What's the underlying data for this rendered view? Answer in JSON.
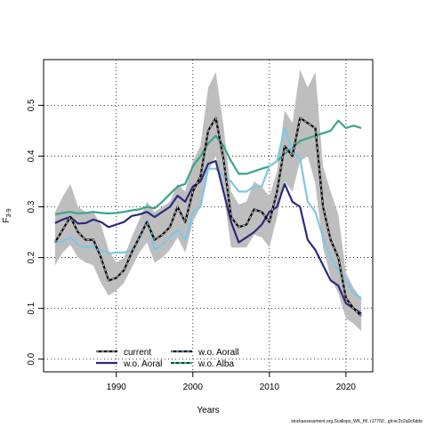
{
  "chart_data": {
    "type": "line",
    "xlabel": "Years",
    "ylabel": "F",
    "ylabel_sub": "3-9",
    "xlim": [
      1980.5,
      2023.5
    ],
    "ylim": [
      -0.025,
      0.59
    ],
    "x_ticks": [
      1990,
      2000,
      2010,
      2020
    ],
    "y_ticks": [
      0.0,
      0.1,
      0.2,
      0.3,
      0.4,
      0.5
    ],
    "y_tick_labels": [
      "0.0",
      "0.1",
      "0.2",
      "0.3",
      "0.4",
      "0.5"
    ],
    "grid": true,
    "legend_position": "bottom-left",
    "x": [
      1982,
      1983,
      1984,
      1985,
      1986,
      1987,
      1988,
      1989,
      1990,
      1991,
      1992,
      1993,
      1994,
      1995,
      1996,
      1997,
      1998,
      1999,
      2000,
      2001,
      2002,
      2003,
      2004,
      2005,
      2006,
      2007,
      2008,
      2009,
      2010,
      2011,
      2012,
      2013,
      2014,
      2015,
      2016,
      2017,
      2018,
      2019,
      2020,
      2021,
      2022
    ],
    "confidence_band": {
      "series": "current",
      "color": "#bebebe",
      "lower": [
        0.185,
        0.21,
        0.225,
        0.2,
        0.19,
        0.185,
        0.15,
        0.125,
        0.135,
        0.15,
        0.18,
        0.21,
        0.23,
        0.19,
        0.2,
        0.215,
        0.24,
        0.21,
        0.27,
        0.3,
        0.37,
        0.4,
        0.33,
        0.22,
        0.22,
        0.22,
        0.245,
        0.24,
        0.22,
        0.28,
        0.35,
        0.33,
        0.39,
        0.4,
        0.345,
        0.22,
        0.16,
        0.13,
        0.08,
        0.07,
        0.055
      ],
      "upper": [
        0.29,
        0.32,
        0.345,
        0.3,
        0.29,
        0.29,
        0.265,
        0.215,
        0.19,
        0.2,
        0.24,
        0.275,
        0.31,
        0.29,
        0.3,
        0.31,
        0.345,
        0.33,
        0.39,
        0.42,
        0.535,
        0.565,
        0.46,
        0.33,
        0.305,
        0.31,
        0.35,
        0.34,
        0.32,
        0.37,
        0.49,
        0.465,
        0.57,
        0.535,
        0.565,
        0.38,
        0.33,
        0.285,
        0.17,
        0.14,
        0.12
      ]
    },
    "series": [
      {
        "name": "current",
        "color": "#000000",
        "dash": "solid",
        "overlay_dash": "#bdbdbd",
        "values": [
          0.23,
          0.255,
          0.28,
          0.25,
          0.235,
          0.235,
          0.2,
          0.155,
          0.16,
          0.175,
          0.21,
          0.24,
          0.27,
          0.235,
          0.245,
          0.26,
          0.3,
          0.27,
          0.33,
          0.36,
          0.45,
          0.475,
          0.395,
          0.28,
          0.26,
          0.265,
          0.295,
          0.29,
          0.27,
          0.33,
          0.42,
          0.4,
          0.475,
          0.465,
          0.455,
          0.3,
          0.235,
          0.2,
          0.12,
          0.1,
          0.085
        ]
      },
      {
        "name": "w.o. Aoral",
        "color": "#2d2a7e",
        "dash": "solid",
        "values": [
          0.268,
          0.275,
          0.28,
          0.267,
          0.268,
          0.275,
          0.27,
          0.26,
          0.265,
          0.27,
          0.282,
          0.285,
          0.29,
          0.28,
          0.29,
          0.3,
          0.322,
          0.31,
          0.34,
          0.35,
          0.385,
          0.39,
          0.33,
          0.27,
          0.23,
          0.24,
          0.25,
          0.265,
          0.29,
          0.3,
          0.345,
          0.31,
          0.3,
          0.235,
          0.215,
          0.185,
          0.155,
          0.145,
          0.11,
          0.1,
          0.09
        ]
      },
      {
        "name": "w.o. Aorall",
        "color": "#7ec8e3",
        "dash": "solid",
        "values": [
          0.23,
          0.232,
          0.24,
          0.225,
          0.22,
          0.222,
          0.215,
          0.208,
          0.21,
          0.21,
          0.215,
          0.235,
          0.275,
          0.215,
          0.225,
          0.24,
          0.255,
          0.235,
          0.29,
          0.3,
          0.375,
          0.375,
          0.36,
          0.35,
          0.33,
          0.33,
          0.34,
          0.34,
          0.38,
          0.39,
          0.455,
          0.41,
          0.395,
          0.31,
          0.29,
          0.24,
          0.2,
          0.175,
          0.155,
          0.13,
          0.12
        ]
      },
      {
        "name": "w.o. Alba",
        "color": "#3aa58c",
        "dash": "solid",
        "values": [
          0.285,
          0.288,
          0.29,
          0.287,
          0.288,
          0.29,
          0.288,
          0.287,
          0.288,
          0.29,
          0.293,
          0.295,
          0.3,
          0.297,
          0.31,
          0.325,
          0.34,
          0.345,
          0.38,
          0.4,
          0.425,
          0.44,
          0.42,
          0.39,
          0.365,
          0.365,
          0.37,
          0.375,
          0.38,
          0.39,
          0.405,
          0.415,
          0.43,
          0.435,
          0.44,
          0.445,
          0.45,
          0.47,
          0.455,
          0.46,
          0.455
        ]
      }
    ],
    "legend": [
      {
        "label": "current",
        "color": "#000000",
        "overlay_dash": "#bdbdbd"
      },
      {
        "label": "w.o. Aoral",
        "color": "#2d2a7e"
      },
      {
        "label": "w.o. Aorall",
        "color": "#000000",
        "overlay_dash": "#7ec8e3"
      },
      {
        "label": "w.o. Alba",
        "color": "#3aa58c",
        "overlay_dash": "#000000"
      }
    ]
  },
  "source_note": "stockassessment.org,Scallops_WK_fit!, r17750 , git:ec2c2a0c6dde"
}
